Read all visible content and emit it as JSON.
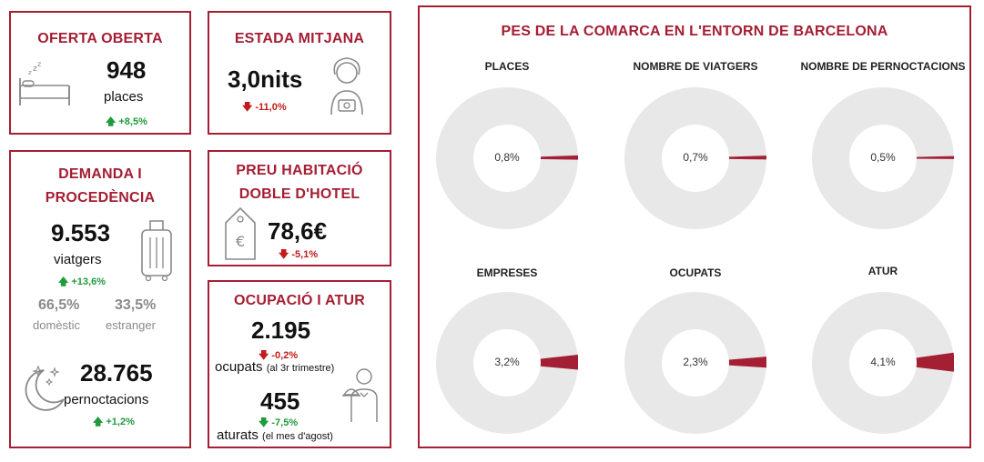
{
  "oferta": {
    "title": "OFERTA OBERTA",
    "value": "948",
    "unit": "places",
    "change": "+8,5%"
  },
  "estada": {
    "title": "ESTADA MITJANA",
    "value": "3,0nits",
    "change": "-11,0%"
  },
  "demanda": {
    "title_line1": "DEMANDA I",
    "title_line2": "PROCEDÈNCIA",
    "viatgers_value": "9.553",
    "viatgers_unit": "viatgers",
    "viatgers_change": "+13,6%",
    "domestic_pct": "66,5%",
    "domestic_label": "domèstic",
    "foreign_pct": "33,5%",
    "foreign_label": "estranger",
    "pernoctacions_value": "28.765",
    "pernoctacions_unit": "pernoctacions",
    "pernoctacions_change": "+1,2%"
  },
  "preu": {
    "title_line1": "PREU HABITACIÓ",
    "title_line2": "DOBLE D'HOTEL",
    "value": "78,6€",
    "change": "-5,1%"
  },
  "ocupacio": {
    "title": "OCUPACIÓ I ATUR",
    "ocupats_value": "2.195",
    "ocupats_change": "-0,2%",
    "ocupats_label": "ocupats",
    "ocupats_note": "(al 3r trimestre)",
    "aturats_value": "455",
    "aturats_change": "-7,5%",
    "aturats_label": "aturats",
    "aturats_note": "(el mes d'agost)"
  },
  "pes": {
    "title": "PES DE LA COMARCA EN L'ENTORN DE BARCELONA"
  },
  "colors": {
    "accent": "#a41e34",
    "pie_bg": "#e8e8e8",
    "up": "#1f9a3c",
    "down": "#c21b1b"
  },
  "chart_data": [
    {
      "type": "pie",
      "title": "PLACES",
      "value": 0.8,
      "label": "0,8%"
    },
    {
      "type": "pie",
      "title": "NOMBRE DE VIATGERS",
      "value": 0.7,
      "label": "0,7%"
    },
    {
      "type": "pie",
      "title": "NOMBRE DE PERNOCTACIONS",
      "value": 0.5,
      "label": "0,5%"
    },
    {
      "type": "pie",
      "title": "EMPRESES",
      "value": 3.2,
      "label": "3,2%"
    },
    {
      "type": "pie",
      "title": "OCUPATS",
      "value": 2.3,
      "label": "2,3%"
    },
    {
      "type": "pie",
      "title": "ATUR",
      "value": 4.1,
      "label": "4,1%"
    }
  ]
}
